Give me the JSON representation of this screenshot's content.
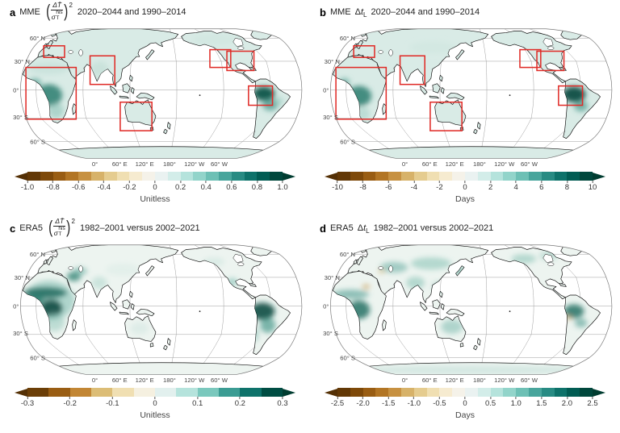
{
  "figure": {
    "panels": [
      {
        "letter": "a",
        "source": "MME",
        "metric": "snr",
        "period": "2020–2044 and 1990–2014",
        "colorbar": {
          "ticks": [
            "-1.0",
            "-0.8",
            "-0.6",
            "-0.4",
            "-0.2",
            "0",
            "0.2",
            "0.4",
            "0.6",
            "0.8",
            "1.0"
          ],
          "label": "Unitless"
        },
        "boxes": true,
        "shading": "mme-snr"
      },
      {
        "letter": "b",
        "source": "MME",
        "metric": "lag",
        "period": "2020–2044 and 1990–2014",
        "colorbar": {
          "ticks": [
            "-10",
            "-8",
            "-6",
            "-4",
            "-2",
            "0",
            "2",
            "4",
            "6",
            "8",
            "10"
          ],
          "label": "Days"
        },
        "boxes": true,
        "shading": "mme-lag"
      },
      {
        "letter": "c",
        "source": "ERA5",
        "metric": "snr",
        "period": "1982–2001 versus 2002–2021",
        "colorbar": {
          "ticks": [
            "-0.3",
            "-0.2",
            "-0.1",
            "0",
            "0.1",
            "0.2",
            "0.3"
          ],
          "label": "Unitless"
        },
        "boxes": false,
        "shading": "era5-snr"
      },
      {
        "letter": "d",
        "source": "ERA5",
        "metric": "lag",
        "period": "1982–2001 versus 2002–2021",
        "colorbar": {
          "ticks": [
            "-2.5",
            "-2.0",
            "-1.5",
            "-1.0",
            "-0.5",
            "0",
            "0.5",
            "1.0",
            "1.5",
            "2.0",
            "2.5"
          ],
          "label": "Days"
        },
        "boxes": false,
        "shading": "era5-lag"
      }
    ],
    "formula_snr": {
      "numerator": "ΔT̄",
      "den_base": "σ",
      "den_sup": "his",
      "den_sub": "T",
      "exponent": "2"
    },
    "formula_lag": {
      "delta": "Δ",
      "var": "t",
      "sub": "L"
    },
    "map": {
      "lat_labels": [
        "60° N",
        "30° N",
        "0°",
        "30° S",
        "60° S"
      ],
      "lon_labels": [
        "0°",
        "60° E",
        "120° E",
        "180°",
        "120° W",
        "60° W"
      ]
    },
    "colors": {
      "box_red": "#e02b27",
      "land_base_mme": "#d9ebe6",
      "land_base_era5": "#edf4f0",
      "coastline": "#0d0d0d",
      "graticule": "#9b9b9b",
      "map_outline": "#777777",
      "brbg_palette": [
        "#543005",
        "#8c510a",
        "#bf812d",
        "#dfc27d",
        "#f6e8c3",
        "#f5f5f5",
        "#c7eae5",
        "#80cdc1",
        "#35978f",
        "#01665e",
        "#003c30"
      ]
    }
  },
  "chart_data": [
    {
      "type": "heatmap",
      "title": "MME (ΔT̄/σ_T^his)² 2020–2044 and 1990–2014",
      "projection": "robinson-global",
      "lat_ticks": [
        "60° N",
        "30° N",
        "0°",
        "30° S",
        "60° S"
      ],
      "lon_ticks": [
        "0°",
        "60° E",
        "120° E",
        "180°",
        "120° W",
        "60° W"
      ],
      "colorbar": {
        "label": "Unitless",
        "range": [
          -1.0,
          1.0
        ],
        "tick_step": 0.2,
        "palette": "BrBG brown-to-teal",
        "extend": "both"
      },
      "highlight_boxes": [
        "western Europe",
        "Africa",
        "India",
        "Australia",
        "western North America",
        "eastern North America",
        "Amazon"
      ],
      "pattern": "Positive (teal) values over nearly all land; strongest (dark teal) over central Africa and the Amazon basin"
    },
    {
      "type": "heatmap",
      "title": "MME Δt_L 2020–2044 and 1990–2014",
      "projection": "robinson-global",
      "lat_ticks": [
        "60° N",
        "30° N",
        "0°",
        "30° S",
        "60° S"
      ],
      "lon_ticks": [
        "0°",
        "60° E",
        "120° E",
        "180°",
        "120° W",
        "60° W"
      ],
      "colorbar": {
        "label": "Days",
        "range": [
          -10,
          10
        ],
        "tick_step": 2,
        "palette": "BrBG brown-to-teal",
        "extend": "both"
      },
      "highlight_boxes": [
        "western Europe",
        "Africa",
        "India",
        "Australia",
        "western North America",
        "eastern North America",
        "Amazon"
      ],
      "pattern": "Positive (teal) lag over most land; darkest over central Africa and the Amazon basin"
    },
    {
      "type": "heatmap",
      "title": "ERA5 (ΔT̄/σ_T^his)² 1982–2001 versus 2002–2021",
      "projection": "robinson-global",
      "lat_ticks": [
        "60° N",
        "30° N",
        "0°",
        "30° S",
        "60° S"
      ],
      "lon_ticks": [
        "0°",
        "60° E",
        "120° E",
        "180°",
        "120° W",
        "60° W"
      ],
      "colorbar": {
        "label": "Unitless",
        "range": [
          -0.3,
          0.3
        ],
        "tick_step": 0.1,
        "palette": "BrBG brown-to-teal",
        "extend": "both"
      },
      "highlight_boxes": [],
      "pattern": "Dark teal over Sahel, central Africa, Middle East and Amazon; lighter teal elsewhere on land"
    },
    {
      "type": "heatmap",
      "title": "ERA5 Δt_L 1982–2001 versus 2002–2021",
      "projection": "robinson-global",
      "lat_ticks": [
        "60° N",
        "30° N",
        "0°",
        "30° S",
        "60° S"
      ],
      "lon_ticks": [
        "0°",
        "60° E",
        "120° E",
        "180°",
        "120° W",
        "60° W"
      ],
      "colorbar": {
        "label": "Days",
        "range": [
          -2.5,
          2.5
        ],
        "tick_step": 0.5,
        "palette": "BrBG brown-to-teal",
        "extend": "both"
      },
      "highlight_boxes": [],
      "pattern": "Patchy teal over most continents with scattered small brown (negative) spots; light teal band over Antarctica"
    }
  ]
}
